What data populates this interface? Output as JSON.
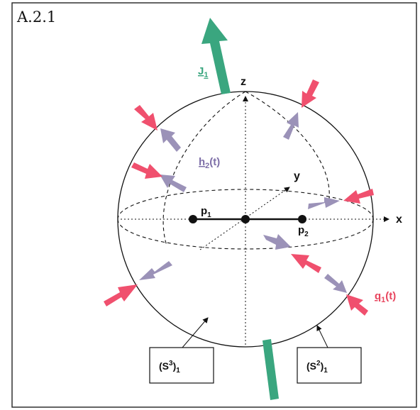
{
  "figure": {
    "title": "A.2.1",
    "labels": {
      "angular_momentum": "J",
      "angular_momentum_sub": "1",
      "field_h": "h",
      "field_h_sub": "2",
      "field_h_arg": "(t)",
      "field_q": "q",
      "field_q_sub": "1",
      "field_q_arg": "(t)",
      "axis_x": "x",
      "axis_y": "y",
      "axis_z": "z",
      "point_1": "p",
      "point_1_sub": "1",
      "point_2": "p",
      "point_2_sub": "2"
    },
    "boxes": {
      "s3_base": "(S",
      "s3_sup": "3",
      "s3_close": ")",
      "s3_sub": "1",
      "s2_base": "(S",
      "s2_sup": "2",
      "s2_close": ")",
      "s2_sub": "1"
    }
  },
  "colors": {
    "green": "#3aa67f",
    "purple": "#9b92b8",
    "pink": "#f0506e",
    "purple_label": "#7e6fa8",
    "pink_label": "#e8455e",
    "green_label": "#3aa67f",
    "line": "#111111"
  }
}
